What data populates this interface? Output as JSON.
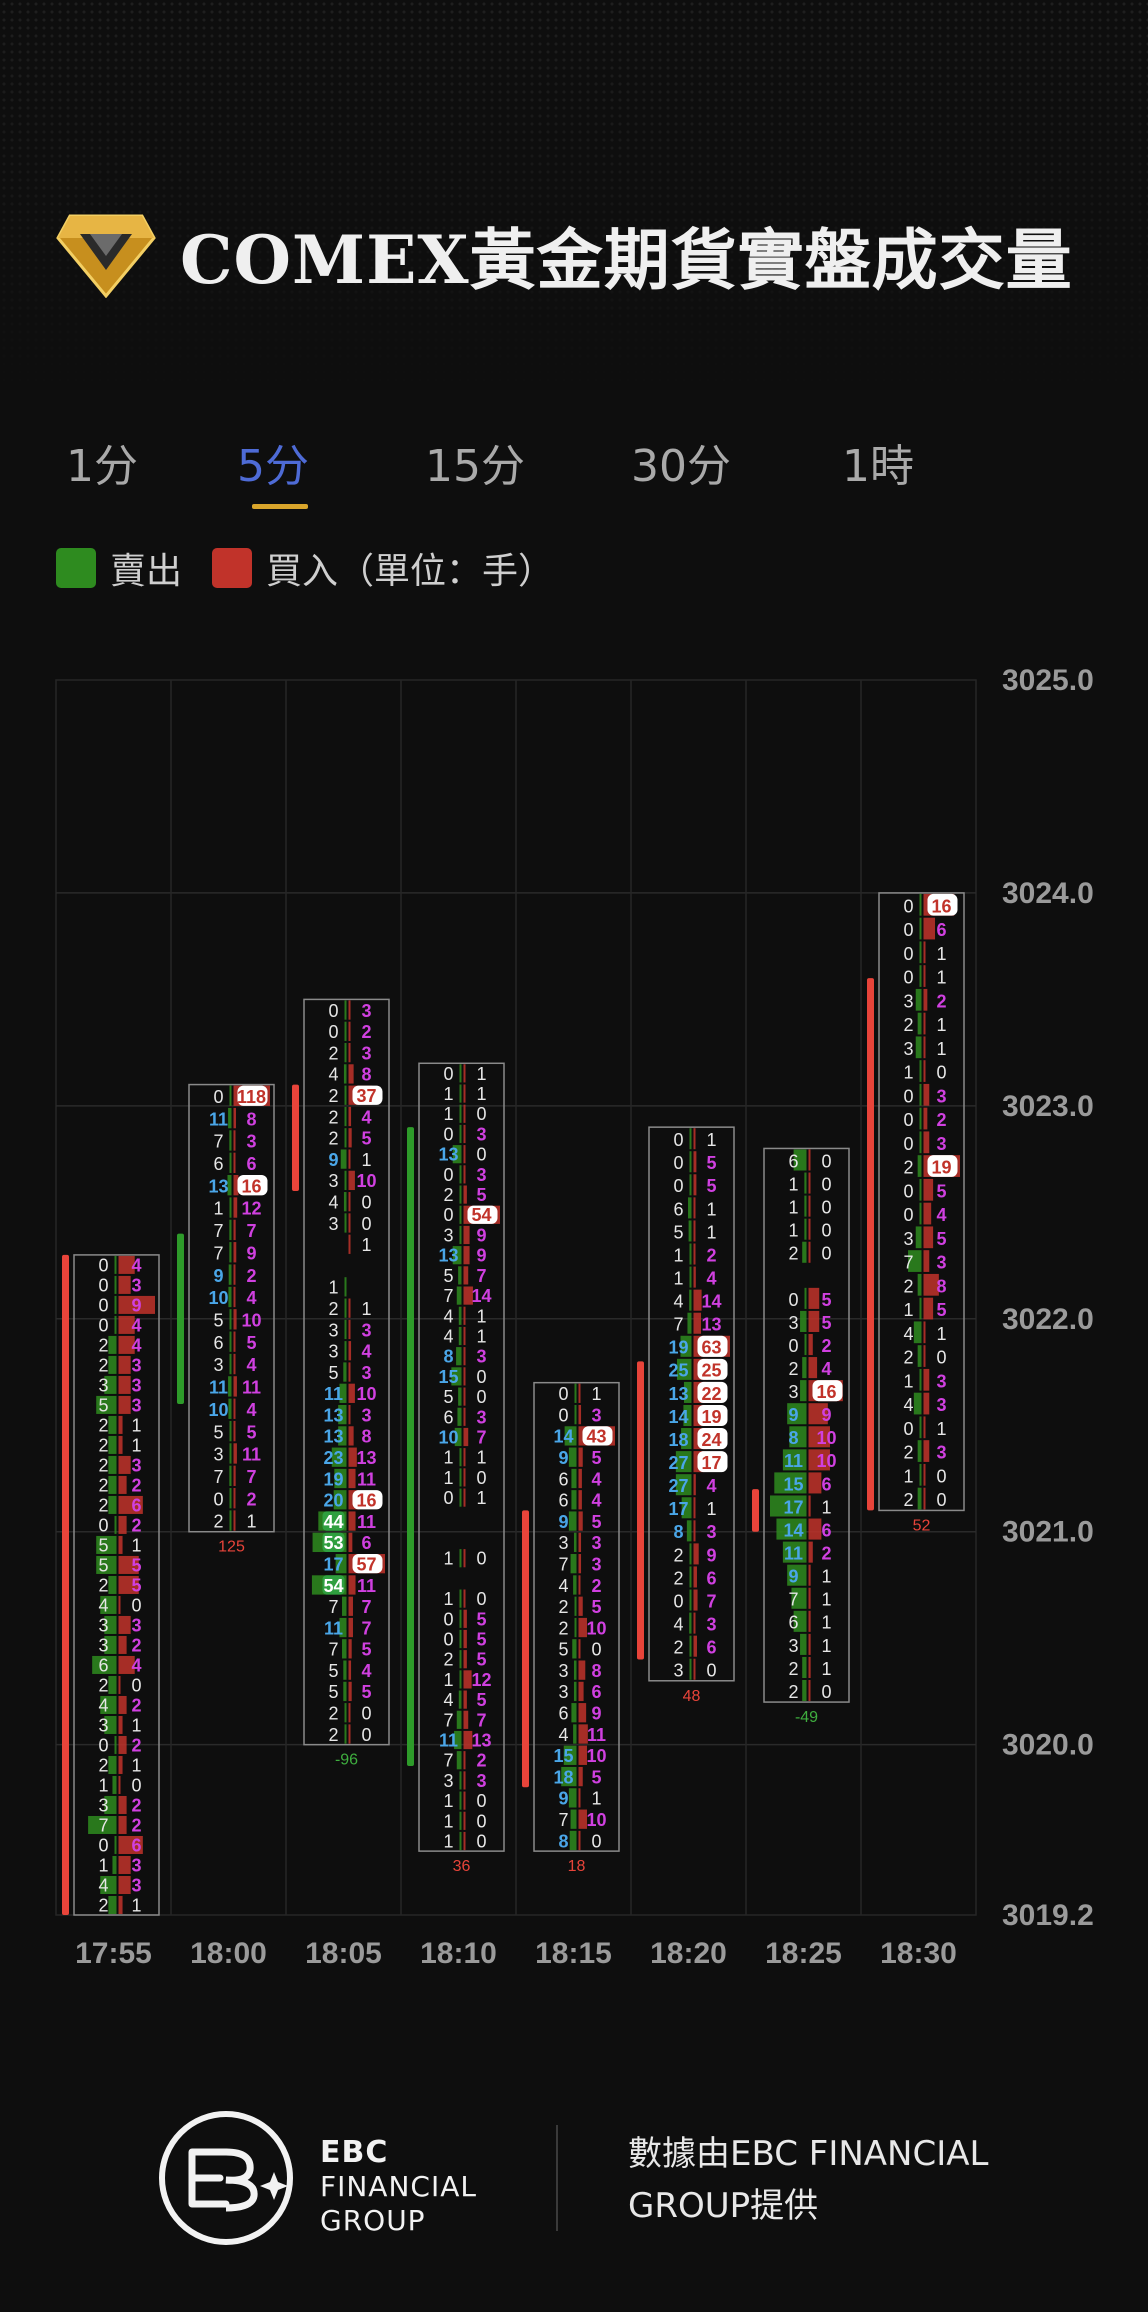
{
  "title": "COMEX黃金期貨實盤成交量",
  "tabs": [
    {
      "label": "1分",
      "active": false
    },
    {
      "label": "5分",
      "active": true
    },
    {
      "label": "15分",
      "active": false
    },
    {
      "label": "30分",
      "active": false
    },
    {
      "label": "1時",
      "active": false
    }
  ],
  "legend": {
    "sell": {
      "label": "賣出",
      "color": "#2e8b1f"
    },
    "buy": {
      "label": "買入",
      "color": "#c1332a"
    },
    "unit": "（單位：手）"
  },
  "footer": {
    "brand_line1": "EBC",
    "brand_line2": "FINANCIAL",
    "brand_line3": "GROUP",
    "provided_line1": "數據由EBC FINANCIAL",
    "provided_line2": "GROUP提供"
  },
  "colors": {
    "sell": "#2e8b1f",
    "buy": "#c1332a",
    "up_bar": "#e8443a",
    "down_bar": "#2e9b2a",
    "sell_highlight": "#4aa6e8",
    "buy_highlight": "#d040e0",
    "accent": "#d9a52b"
  },
  "chart_data": {
    "type": "footprint",
    "price_ticks": [
      "3025.0",
      "3024.0",
      "3023.0",
      "3022.0",
      "3021.0",
      "3020.0",
      "3019.2"
    ],
    "price_range": [
      3019.2,
      3025.0
    ],
    "candles": [
      {
        "time": "17:55",
        "delta": "",
        "bar": {
          "dir": "up",
          "high": 3022.3,
          "low": 3019.2
        },
        "sell": [
          "0",
          "0",
          "0",
          "0",
          "2",
          "2",
          "3",
          "5",
          "2",
          "2",
          "2",
          "2",
          "2",
          "0",
          "5",
          "5",
          "2",
          "4",
          "3",
          "3",
          "6",
          "2",
          "4",
          "3",
          "0",
          "2",
          "1",
          "3",
          "7",
          "0",
          "1",
          "4",
          "2"
        ],
        "buy": [
          "4",
          "3",
          "9",
          "4",
          "4",
          "3",
          "3",
          "3",
          "1",
          "1",
          "3",
          "2",
          "6",
          "2",
          "1",
          "5",
          "5",
          "0",
          "3",
          "2",
          "4",
          "0",
          "2",
          "1",
          "2",
          "1",
          "0",
          "2",
          "2",
          "6",
          "3",
          "3",
          "1"
        ],
        "top": 3022.3,
        "bottom": 3019.2
      },
      {
        "time": "18:00",
        "delta": "125",
        "bar": {
          "dir": "down",
          "high": 3022.4,
          "low": 3021.6
        },
        "sell": [
          "0",
          "11",
          "7",
          "6",
          "13",
          "1",
          "7",
          "7",
          "9",
          "10",
          "5",
          "6",
          "3",
          "11",
          "10",
          "5",
          "3",
          "7",
          "0",
          "2"
        ],
        "buy": [
          "118",
          "8",
          "3",
          "6",
          "16",
          "12",
          "7",
          "9",
          "2",
          "4",
          "10",
          "5",
          "4",
          "11",
          "4",
          "5",
          "11",
          "7",
          "2",
          "1"
        ],
        "top": 3023.1,
        "bottom": 3021.0
      },
      {
        "time": "18:05",
        "delta": "-96",
        "bar": {
          "dir": "up",
          "high": 3023.1,
          "low": 3022.6
        },
        "sell": [
          "0",
          "0",
          "2",
          "4",
          "2",
          "2",
          "2",
          "9",
          "3",
          "4",
          "3",
          "",
          "",
          "1",
          "2",
          "3",
          "3",
          "5",
          "11",
          "13",
          "13",
          "23",
          "19",
          "20",
          "44",
          "53",
          "17",
          "54",
          "7",
          "11",
          "7",
          "5",
          "5",
          "2",
          "2"
        ],
        "buy": [
          "3",
          "2",
          "3",
          "8",
          "37",
          "4",
          "5",
          "1",
          "10",
          "0",
          "0",
          "1",
          "",
          "",
          "1",
          "3",
          "4",
          "3",
          "10",
          "3",
          "8",
          "13",
          "11",
          "16",
          "11",
          "6",
          "57",
          "11",
          "7",
          "7",
          "5",
          "4",
          "5",
          "0",
          "0"
        ],
        "top": 3023.5,
        "bottom": 3020.0
      },
      {
        "time": "18:10",
        "delta": "36",
        "bar": {
          "dir": "down",
          "high": 3022.9,
          "low": 3019.9
        },
        "sell": [
          "0",
          "1",
          "1",
          "0",
          "13",
          "0",
          "2",
          "0",
          "3",
          "13",
          "5",
          "7",
          "4",
          "4",
          "8",
          "15",
          "5",
          "6",
          "10",
          "1",
          "1",
          "0",
          "",
          "",
          "1",
          "",
          "1",
          "0",
          "0",
          "2",
          "1",
          "4",
          "7",
          "11",
          "7",
          "3",
          "1",
          "1",
          "1"
        ],
        "buy": [
          "1",
          "1",
          "0",
          "3",
          "0",
          "3",
          "5",
          "54",
          "9",
          "9",
          "7",
          "14",
          "1",
          "1",
          "3",
          "0",
          "0",
          "3",
          "7",
          "1",
          "0",
          "1",
          "",
          "",
          "0",
          "",
          "0",
          "5",
          "5",
          "5",
          "12",
          "5",
          "7",
          "13",
          "2",
          "3",
          "0",
          "0",
          "0"
        ],
        "top": 3023.2,
        "bottom": 3019.5
      },
      {
        "time": "18:15",
        "delta": "18",
        "bar": {
          "dir": "up",
          "high": 3021.1,
          "low": 3019.8
        },
        "sell": [
          "0",
          "0",
          "14",
          "9",
          "6",
          "6",
          "9",
          "3",
          "7",
          "4",
          "2",
          "2",
          "5",
          "3",
          "3",
          "6",
          "4",
          "15",
          "18",
          "9",
          "7",
          "8"
        ],
        "buy": [
          "1",
          "3",
          "43",
          "5",
          "4",
          "4",
          "5",
          "3",
          "3",
          "2",
          "5",
          "10",
          "0",
          "8",
          "6",
          "9",
          "11",
          "10",
          "5",
          "1",
          "10",
          "0"
        ],
        "top": 3021.7,
        "bottom": 3019.5
      },
      {
        "time": "18:20",
        "delta": "48",
        "bar": {
          "dir": "up",
          "high": 3021.8,
          "low": 3020.4
        },
        "sell": [
          "0",
          "0",
          "0",
          "6",
          "5",
          "1",
          "1",
          "4",
          "7",
          "19",
          "25",
          "13",
          "14",
          "18",
          "27",
          "27",
          "17",
          "8",
          "2",
          "2",
          "0",
          "4",
          "2",
          "3"
        ],
        "buy": [
          "1",
          "5",
          "5",
          "1",
          "1",
          "2",
          "4",
          "14",
          "13",
          "63",
          "25",
          "22",
          "19",
          "24",
          "17",
          "4",
          "1",
          "3",
          "9",
          "6",
          "7",
          "3",
          "6",
          "0"
        ],
        "top": 3022.9,
        "bottom": 3020.3
      },
      {
        "time": "18:25",
        "delta": "-49",
        "bar": {
          "dir": "up",
          "high": 3021.2,
          "low": 3021.0
        },
        "sell": [
          "6",
          "1",
          "1",
          "1",
          "2",
          "",
          "0",
          "3",
          "0",
          "2",
          "3",
          "9",
          "8",
          "11",
          "15",
          "17",
          "14",
          "11",
          "9",
          "7",
          "6",
          "3",
          "2",
          "2"
        ],
        "buy": [
          "0",
          "0",
          "0",
          "0",
          "0",
          "",
          "5",
          "5",
          "2",
          "4",
          "16",
          "9",
          "10",
          "10",
          "6",
          "1",
          "6",
          "2",
          "1",
          "1",
          "1",
          "1",
          "1",
          "0"
        ],
        "top": 3022.8,
        "bottom": 3020.2
      },
      {
        "time": "18:30",
        "delta": "52",
        "bar": {
          "dir": "up",
          "high": 3023.6,
          "low": 3021.1
        },
        "sell": [
          "0",
          "0",
          "0",
          "0",
          "3",
          "2",
          "3",
          "1",
          "0",
          "0",
          "0",
          "2",
          "0",
          "0",
          "3",
          "7",
          "2",
          "1",
          "4",
          "2",
          "1",
          "4",
          "0",
          "2",
          "1",
          "2"
        ],
        "buy": [
          "16",
          "6",
          "1",
          "1",
          "2",
          "1",
          "1",
          "0",
          "3",
          "2",
          "3",
          "19",
          "5",
          "4",
          "5",
          "3",
          "8",
          "5",
          "1",
          "0",
          "3",
          "3",
          "1",
          "3",
          "0",
          "0"
        ],
        "top": 3024.0,
        "bottom": 3021.1
      }
    ]
  }
}
